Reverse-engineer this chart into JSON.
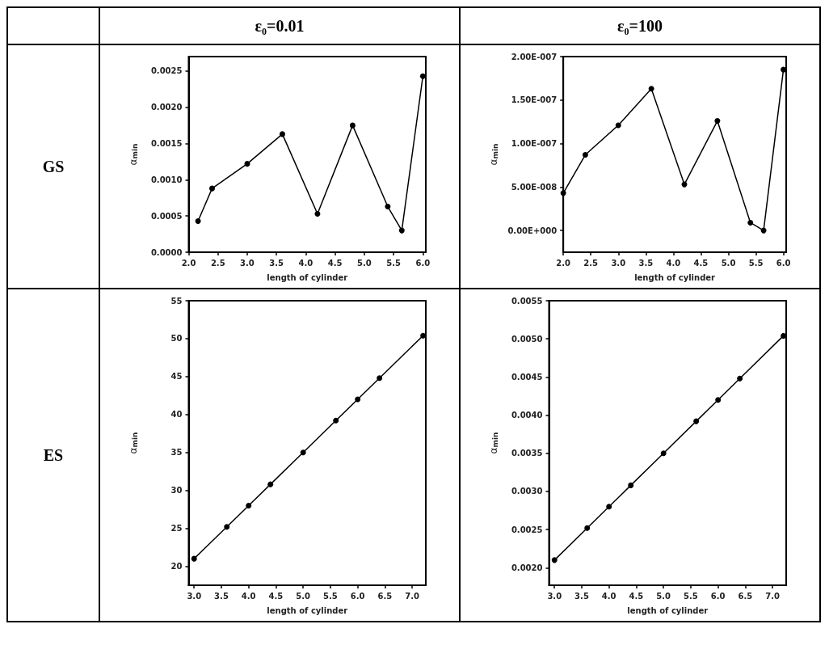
{
  "chart_data": [
    {
      "type": "line",
      "title": "ε₀=0.01",
      "annotations": [
        "GS"
      ],
      "xlabel": "length of cylinder",
      "ylabel": "α$_{min}$",
      "color": "#000000",
      "marker": "circle",
      "x": [
        2.16,
        2.4,
        3.0,
        3.6,
        4.2,
        4.8,
        5.4,
        5.64,
        6.0
      ],
      "values": [
        0.00043,
        0.00088,
        0.00122,
        0.00163,
        0.00053,
        0.00175,
        0.00063,
        0.0003,
        0.00243
      ],
      "xlim": [
        2.0,
        6.05
      ],
      "xticks": [
        {
          "value": 2.0,
          "label": "2.0"
        },
        {
          "value": 2.5,
          "label": "2.5"
        },
        {
          "value": 3.0,
          "label": "3.0"
        },
        {
          "value": 3.5,
          "label": "3.5"
        },
        {
          "value": 4.0,
          "label": "4.0"
        },
        {
          "value": 4.5,
          "label": "4.5"
        },
        {
          "value": 5.0,
          "label": "5.0"
        },
        {
          "value": 5.5,
          "label": "5.5"
        },
        {
          "value": 6.0,
          "label": "6.0"
        }
      ],
      "ylim": [
        0,
        0.0027
      ],
      "yticks": [
        {
          "value": 0,
          "label": "0.0000"
        },
        {
          "value": 0.0005,
          "label": "0.0005"
        },
        {
          "value": 0.001,
          "label": "0.0010"
        },
        {
          "value": 0.0015,
          "label": "0.0015"
        },
        {
          "value": 0.002,
          "label": "0.0020"
        },
        {
          "value": 0.0025,
          "label": "0.0025"
        }
      ]
    },
    {
      "type": "line",
      "title": "ε₀=100",
      "xlabel": "length of cylinder",
      "ylabel": "α$_{min}$",
      "color": "#000000",
      "marker": "circle",
      "x": [
        2.0,
        2.4,
        3.0,
        3.6,
        4.2,
        4.8,
        5.4,
        5.64,
        6.0
      ],
      "values": [
        4.3e-08,
        8.7e-08,
        1.21e-07,
        1.63e-07,
        5.3e-08,
        1.26e-07,
        9e-09,
        0,
        1.85e-07
      ],
      "xlim": [
        2.0,
        6.05
      ],
      "xticks": [
        {
          "value": 2.0,
          "label": "2.0"
        },
        {
          "value": 2.5,
          "label": "2.5"
        },
        {
          "value": 3.0,
          "label": "3.0"
        },
        {
          "value": 3.5,
          "label": "3.5"
        },
        {
          "value": 4.0,
          "label": "4.0"
        },
        {
          "value": 4.5,
          "label": "4.5"
        },
        {
          "value": 5.0,
          "label": "5.0"
        },
        {
          "value": 5.5,
          "label": "5.5"
        },
        {
          "value": 6.0,
          "label": "6.0"
        }
      ],
      "ylim": [
        -2.5e-08,
        2e-07
      ],
      "yticks": [
        {
          "value": 0,
          "label": "0.00E+000"
        },
        {
          "value": 5e-08,
          "label": "5.00E-008"
        },
        {
          "value": 1e-07,
          "label": "1.00E-007"
        },
        {
          "value": 1.5e-07,
          "label": "1.50E-007"
        },
        {
          "value": 2e-07,
          "label": "2.00E-007"
        }
      ]
    },
    {
      "type": "line",
      "annotations": [
        "ES"
      ],
      "xlabel": "length of cylinder",
      "ylabel": "α$_{min}$",
      "color": "#000000",
      "marker": "circle",
      "x": [
        3.0,
        3.6,
        4.0,
        4.4,
        5.0,
        5.6,
        6.0,
        6.4,
        7.2
      ],
      "values": [
        21,
        25.2,
        28,
        30.8,
        35,
        39.2,
        42,
        44.8,
        50.4
      ],
      "xlim": [
        2.9,
        7.25
      ],
      "xticks": [
        {
          "value": 3.0,
          "label": "3.0"
        },
        {
          "value": 3.5,
          "label": "3.5"
        },
        {
          "value": 4.0,
          "label": "4.0"
        },
        {
          "value": 4.5,
          "label": "4.5"
        },
        {
          "value": 5.0,
          "label": "5.0"
        },
        {
          "value": 5.5,
          "label": "5.5"
        },
        {
          "value": 6.0,
          "label": "6.0"
        },
        {
          "value": 6.5,
          "label": "6.5"
        },
        {
          "value": 7.0,
          "label": "7.0"
        }
      ],
      "ylim": [
        17.5,
        55
      ],
      "yticks": [
        20,
        25,
        30,
        35,
        40,
        45,
        50,
        55
      ]
    },
    {
      "type": "line",
      "xlabel": "length of cylinder",
      "ylabel": "α$_{min}$",
      "color": "#000000",
      "marker": "circle",
      "x": [
        3.0,
        3.6,
        4.0,
        4.4,
        5.0,
        5.6,
        6.0,
        6.4,
        7.2
      ],
      "values": [
        0.0021,
        0.00252,
        0.0028,
        0.00308,
        0.0035,
        0.00392,
        0.0042,
        0.00448,
        0.00504
      ],
      "xlim": [
        2.9,
        7.25
      ],
      "xticks": [
        {
          "value": 3.0,
          "label": "3.0"
        },
        {
          "value": 3.5,
          "label": "3.5"
        },
        {
          "value": 4.0,
          "label": "4.0"
        },
        {
          "value": 4.5,
          "label": "4.5"
        },
        {
          "value": 5.0,
          "label": "5.0"
        },
        {
          "value": 5.5,
          "label": "5.5"
        },
        {
          "value": 6.0,
          "label": "6.0"
        },
        {
          "value": 6.5,
          "label": "6.5"
        },
        {
          "value": 7.0,
          "label": "7.0"
        }
      ],
      "ylim": [
        0.00177,
        0.0055
      ],
      "yticks": [
        {
          "value": 0.002,
          "label": "0.0020"
        },
        {
          "value": 0.0025,
          "label": "0.0025"
        },
        {
          "value": 0.003,
          "label": "0.0030"
        },
        {
          "value": 0.0035,
          "label": "0.0035"
        },
        {
          "value": 0.004,
          "label": "0.0040"
        },
        {
          "value": 0.0045,
          "label": "0.0045"
        },
        {
          "value": 0.005,
          "label": "0.0050"
        },
        {
          "value": 0.0055,
          "label": "0.0055"
        }
      ]
    }
  ]
}
